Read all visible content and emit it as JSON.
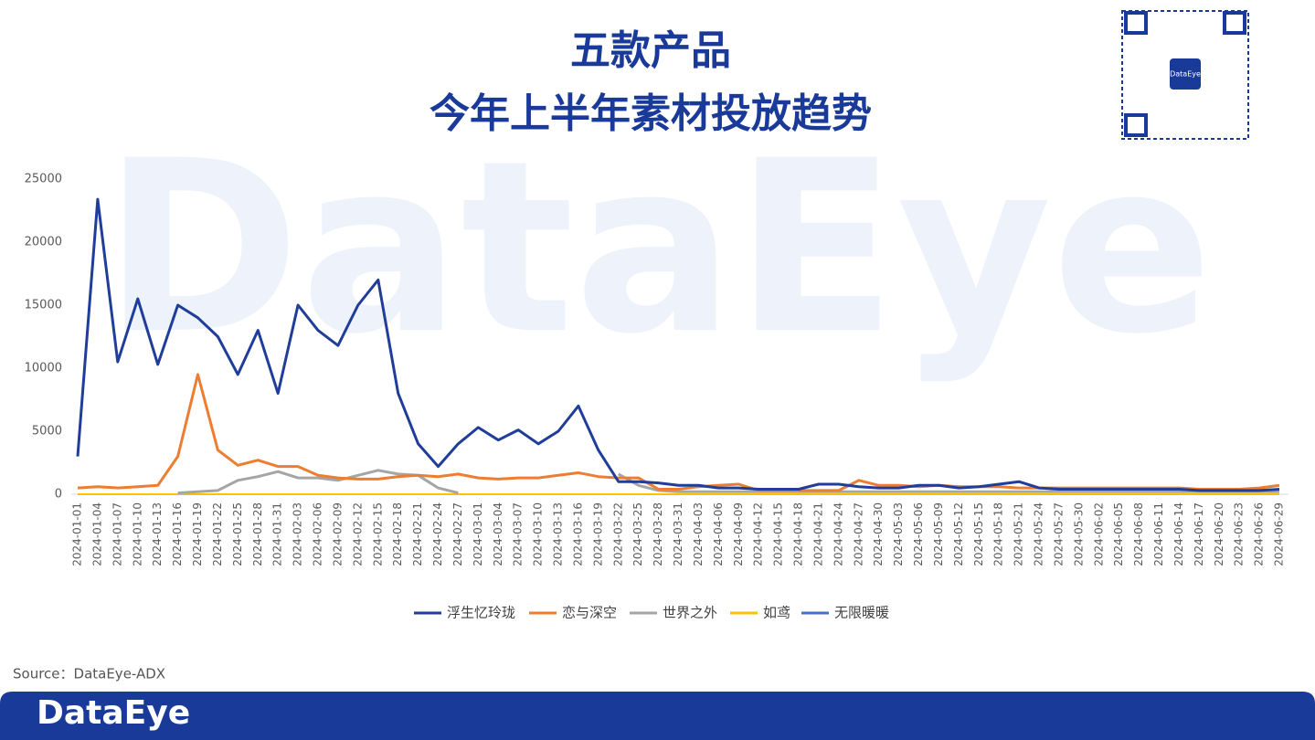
{
  "chart_data": {
    "type": "line",
    "title": "五款产品",
    "subtitle": "今年上半年素材投放趋势",
    "watermark": "DataEye",
    "source": "Source：DataEye-ADX",
    "footer_logo": "DataEye",
    "qr_label": "DataEye",
    "categories": [
      "2024-01-01",
      "2024-01-04",
      "2024-01-07",
      "2024-01-10",
      "2024-01-13",
      "2024-01-16",
      "2024-01-19",
      "2024-01-22",
      "2024-01-25",
      "2024-01-28",
      "2024-01-31",
      "2024-02-03",
      "2024-02-06",
      "2024-02-09",
      "2024-02-12",
      "2024-02-15",
      "2024-02-18",
      "2024-02-21",
      "2024-02-24",
      "2024-02-27",
      "2024-03-01",
      "2024-03-04",
      "2024-03-07",
      "2024-03-10",
      "2024-03-13",
      "2024-03-16",
      "2024-03-19",
      "2024-03-22",
      "2024-03-25",
      "2024-03-28",
      "2024-03-31",
      "2024-04-03",
      "2024-04-06",
      "2024-04-09",
      "2024-04-12",
      "2024-04-15",
      "2024-04-18",
      "2024-04-21",
      "2024-04-24",
      "2024-04-27",
      "2024-04-30",
      "2024-05-03",
      "2024-05-06",
      "2024-05-09",
      "2024-05-12",
      "2024-05-15",
      "2024-05-18",
      "2024-05-21",
      "2024-05-24",
      "2024-05-27",
      "2024-05-30",
      "2024-06-02",
      "2024-06-05",
      "2024-06-08",
      "2024-06-11",
      "2024-06-14",
      "2024-06-17",
      "2024-06-20",
      "2024-06-23",
      "2024-06-26",
      "2024-06-29"
    ],
    "series": [
      {
        "name": "浮生忆玲珑",
        "color": "#1f3d99",
        "values": [
          3000,
          23400,
          10500,
          15500,
          10300,
          15000,
          14000,
          12500,
          9500,
          13000,
          8000,
          15000,
          13000,
          11800,
          15000,
          17000,
          8000,
          4000,
          2200,
          4000,
          5300,
          4300,
          5100,
          4000,
          5000,
          7000,
          3500,
          1000,
          1000,
          900,
          700,
          700,
          500,
          500,
          400,
          400,
          400,
          800,
          800,
          600,
          500,
          500,
          700,
          700,
          500,
          600,
          800,
          1000,
          500,
          400,
          400,
          400,
          400,
          400,
          400,
          400,
          300,
          300,
          300,
          300,
          400
        ]
      },
      {
        "name": "恋与深空",
        "color": "#ed7d31",
        "values": [
          500,
          600,
          500,
          600,
          700,
          3000,
          9500,
          3500,
          2300,
          2700,
          2200,
          2200,
          1500,
          1300,
          1200,
          1200,
          1400,
          1500,
          1400,
          1600,
          1300,
          1200,
          1300,
          1300,
          1500,
          1700,
          1400,
          1300,
          1300,
          400,
          400,
          600,
          700,
          800,
          300,
          300,
          300,
          300,
          300,
          1100,
          700,
          700,
          600,
          700,
          600,
          600,
          600,
          500,
          500,
          500,
          500,
          500,
          500,
          500,
          500,
          500,
          400,
          400,
          400,
          500,
          700
        ]
      },
      {
        "name": "世界之外",
        "color": "#a5a5a5",
        "values": [
          null,
          null,
          null,
          null,
          null,
          100,
          200,
          300,
          1100,
          1400,
          1800,
          1300,
          1300,
          1100,
          1500,
          1900,
          1600,
          1500,
          500,
          100,
          null,
          null,
          null,
          null,
          null,
          null,
          null,
          1600,
          700,
          300,
          200,
          200,
          200,
          200,
          200,
          200,
          200,
          200,
          200,
          200,
          200,
          200,
          200,
          200,
          200,
          200,
          200,
          200,
          200,
          200,
          200,
          200,
          200,
          200,
          200,
          200,
          200,
          200,
          200,
          200,
          200
        ]
      },
      {
        "name": "如鸢",
        "color": "#ffc000",
        "values": [
          0,
          0,
          0,
          0,
          0,
          0,
          0,
          0,
          0,
          0,
          0,
          0,
          0,
          0,
          0,
          0,
          0,
          0,
          0,
          0,
          0,
          0,
          0,
          0,
          0,
          0,
          0,
          0,
          0,
          0,
          0,
          0,
          0,
          0,
          0,
          0,
          0,
          0,
          0,
          0,
          0,
          0,
          0,
          0,
          0,
          0,
          0,
          0,
          0,
          0,
          0,
          0,
          0,
          0,
          0,
          0,
          0,
          0,
          0,
          0,
          0
        ]
      },
      {
        "name": "无限暖暖",
        "color": "#4472c4",
        "values": [
          0,
          0,
          0,
          0,
          0,
          0,
          0,
          0,
          0,
          0,
          0,
          0,
          0,
          0,
          0,
          0,
          0,
          0,
          0,
          0,
          0,
          0,
          0,
          0,
          0,
          0,
          0,
          0,
          0,
          0,
          0,
          0,
          0,
          0,
          0,
          0,
          0,
          0,
          0,
          0,
          0,
          0,
          0,
          0,
          0,
          0,
          0,
          0,
          0,
          0,
          0,
          0,
          0,
          0,
          0,
          0,
          0,
          0,
          0,
          0,
          0
        ]
      }
    ],
    "ylim": [
      0,
      25000
    ],
    "yticks": [
      0,
      5000,
      10000,
      15000,
      20000,
      25000
    ],
    "grid": false,
    "legend": "bottom"
  }
}
